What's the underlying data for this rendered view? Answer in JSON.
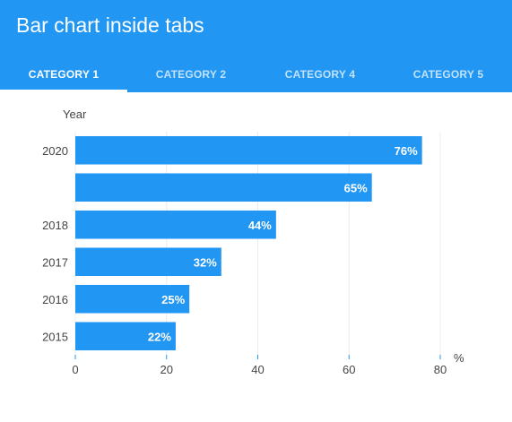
{
  "app_bar": {
    "title": "Bar chart inside tabs",
    "background": "#2196f3"
  },
  "tabs": [
    {
      "label": "CATEGORY 1",
      "active": true
    },
    {
      "label": "CATEGORY 2",
      "active": false
    },
    {
      "label": "CATEGORY 4",
      "active": false
    },
    {
      "label": "CATEGORY 5",
      "active": false
    }
  ],
  "chart_data": {
    "type": "bar",
    "orientation": "horizontal",
    "ylabel": "Year",
    "xlabel": "%",
    "categories": [
      "2020",
      "",
      "2018",
      "2017",
      "2016",
      "2015"
    ],
    "values": [
      76,
      65,
      44,
      32,
      25,
      22
    ],
    "data_labels": [
      "76%",
      "65%",
      "44%",
      "32%",
      "25%",
      "22%"
    ],
    "x_ticks": [
      "0",
      "20",
      "40",
      "60",
      "80"
    ],
    "xlim": [
      0,
      80
    ],
    "grid": true,
    "bar_color": "#2196f3",
    "label_color": "#ffffff"
  }
}
